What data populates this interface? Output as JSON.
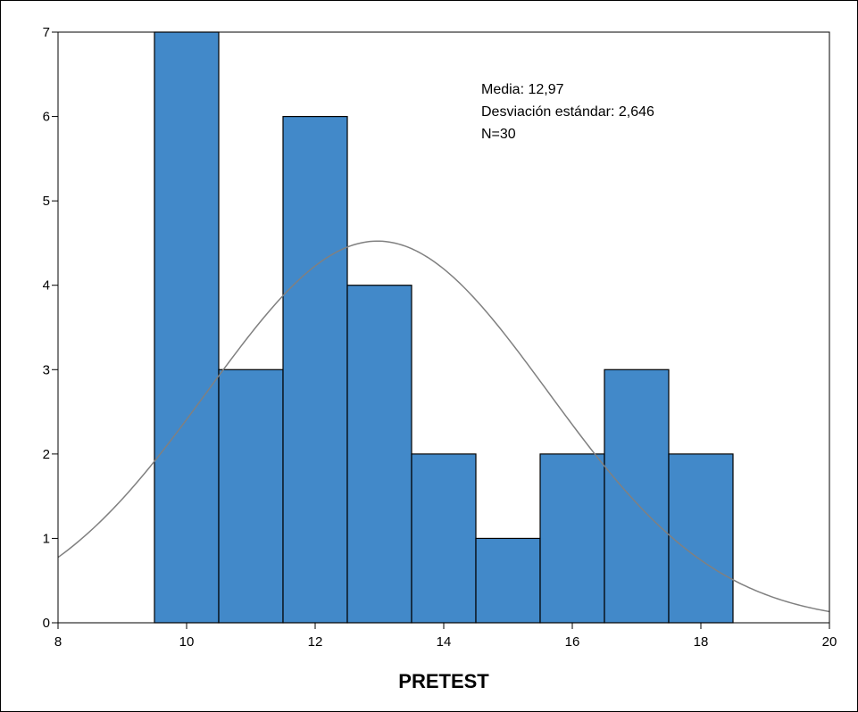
{
  "chart_data": {
    "type": "bar",
    "title": "",
    "xlabel": "PRETEST",
    "ylabel": "",
    "xlim": [
      8,
      20
    ],
    "ylim": [
      0,
      7
    ],
    "x_ticks": [
      8,
      10,
      12,
      14,
      16,
      18,
      20
    ],
    "y_ticks": [
      0,
      1,
      2,
      3,
      4,
      5,
      6,
      7
    ],
    "bin_width": 1,
    "bins": [
      {
        "center": 10,
        "value": 7
      },
      {
        "center": 11,
        "value": 3
      },
      {
        "center": 12,
        "value": 6
      },
      {
        "center": 13,
        "value": 4
      },
      {
        "center": 14,
        "value": 2
      },
      {
        "center": 15,
        "value": 1
      },
      {
        "center": 16,
        "value": 2
      },
      {
        "center": 17,
        "value": 3
      },
      {
        "center": 18,
        "value": 2
      }
    ],
    "normal_curve": {
      "mean": 12.97,
      "sd": 2.646,
      "n": 30
    },
    "grid": false,
    "bar_color": "#4289c9",
    "curve_color": "#808080"
  },
  "stats": {
    "mean_line": "Media: 12,97",
    "sd_line": "Desviación estándar: 2,646",
    "n_line": "N=30"
  }
}
